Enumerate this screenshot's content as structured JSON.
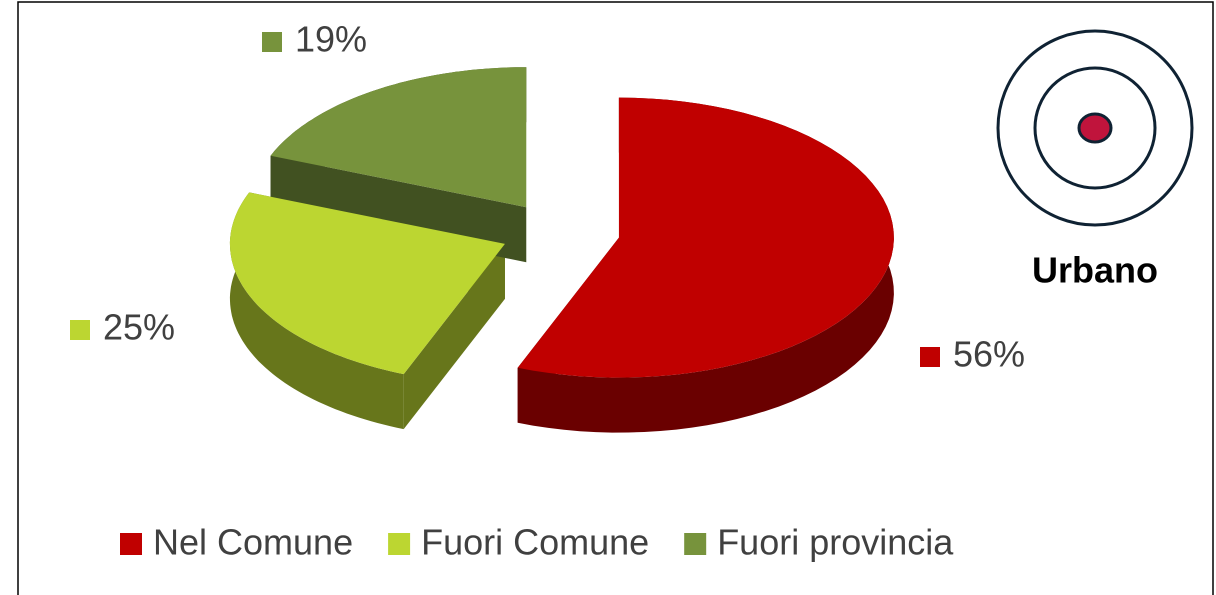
{
  "chart_data": {
    "type": "pie3d",
    "categories": [
      "Nel Comune",
      "Fuori Comune",
      "Fuori provincia"
    ],
    "values": [
      56,
      25,
      19
    ],
    "value_labels": [
      "56%",
      "25%",
      "19%"
    ],
    "colors": [
      "#c00000",
      "#bcd631",
      "#77933c"
    ],
    "legend": "bottom",
    "annotations": [
      "Urbano"
    ]
  }
}
